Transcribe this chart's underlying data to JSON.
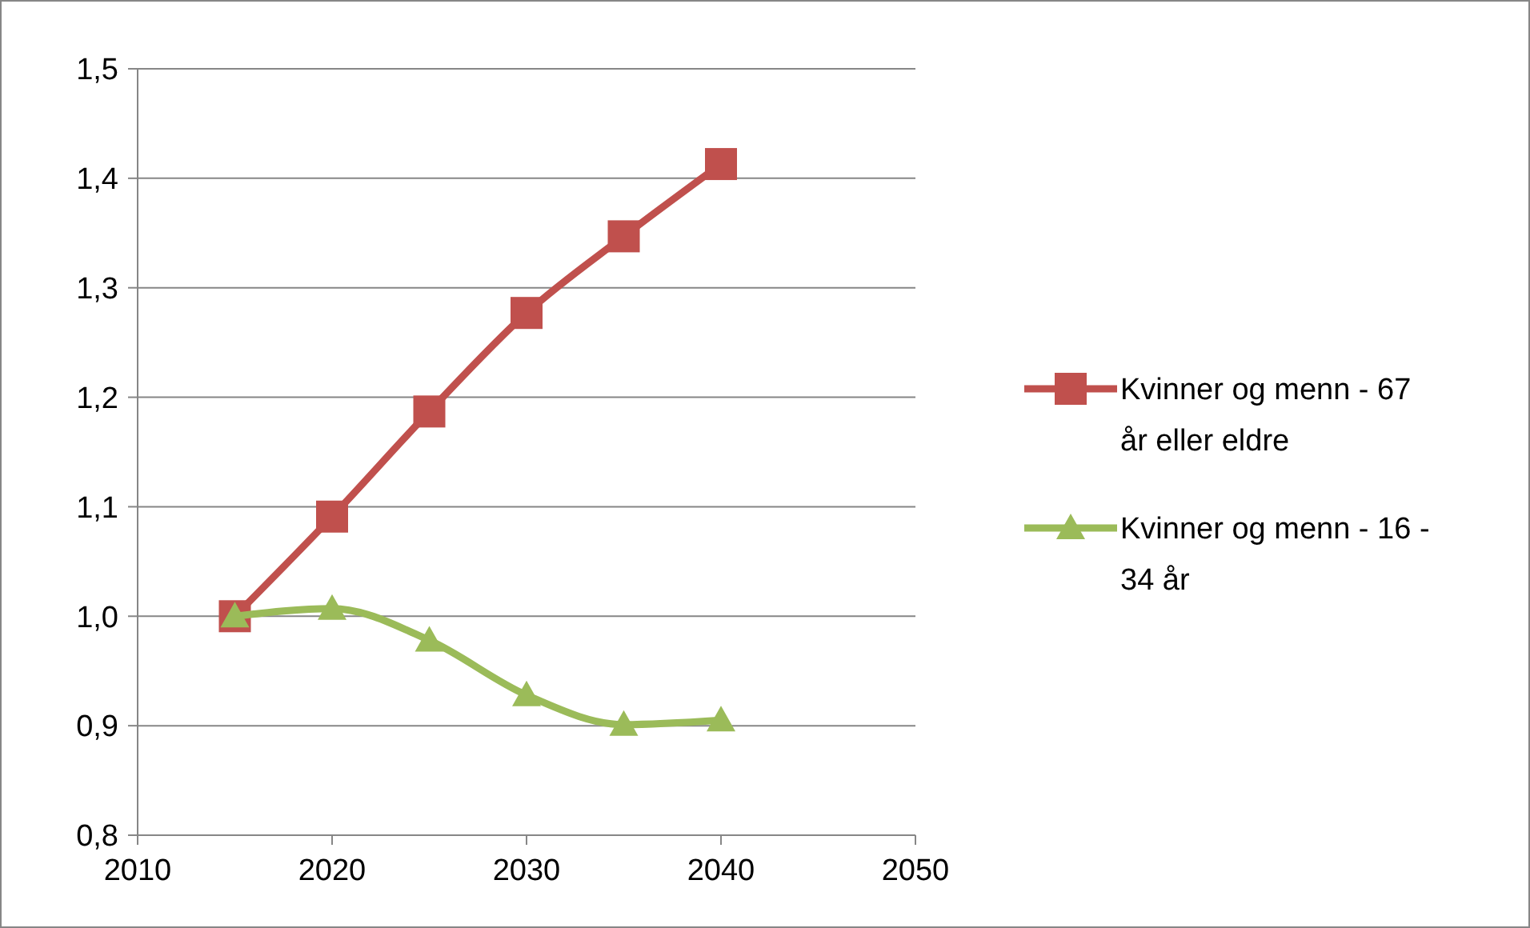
{
  "chart_data": {
    "type": "line",
    "x": [
      2015,
      2020,
      2025,
      2030,
      2035,
      2040
    ],
    "series": [
      {
        "name": "Kvinner og menn - 67 år eller eldre",
        "color": "#c0504d",
        "marker": "square",
        "values": [
          1.0,
          1.091,
          1.187,
          1.277,
          1.347,
          1.413
        ]
      },
      {
        "name": "Kvinner og menn - 16 - 34 år",
        "color": "#9bbb59",
        "marker": "triangle",
        "values": [
          1.0,
          1.007,
          0.978,
          0.928,
          0.901,
          0.905
        ]
      }
    ],
    "xlim": [
      2010,
      2050
    ],
    "xticks": [
      2010,
      2020,
      2030,
      2040,
      2050
    ],
    "ylim": [
      0.8,
      1.5
    ],
    "yticks": [
      {
        "value": 0.8,
        "label": "0,8"
      },
      {
        "value": 0.9,
        "label": "0,9"
      },
      {
        "value": 1.0,
        "label": "1,0"
      },
      {
        "value": 1.1,
        "label": "1,1"
      },
      {
        "value": 1.2,
        "label": "1,2"
      },
      {
        "value": 1.3,
        "label": "1,3"
      },
      {
        "value": 1.4,
        "label": "1,4"
      },
      {
        "value": 1.5,
        "label": "1,5"
      }
    ],
    "grid": "y",
    "legend": "right"
  }
}
